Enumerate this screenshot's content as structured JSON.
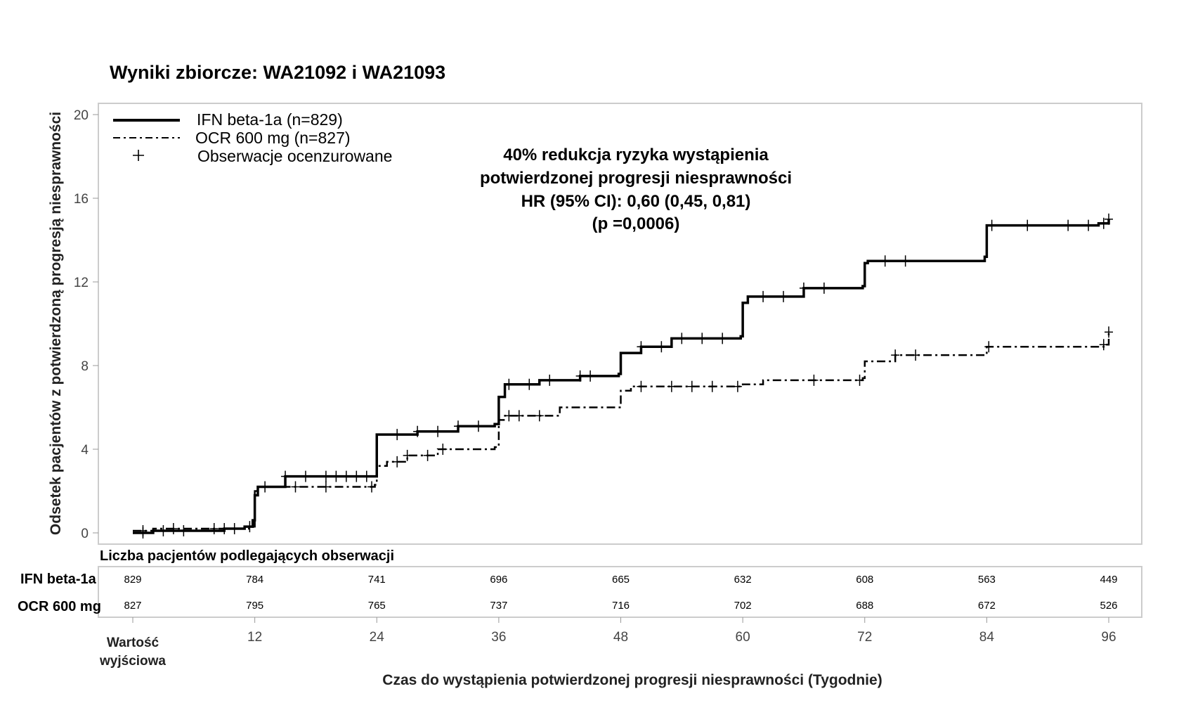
{
  "chart_data": {
    "type": "line",
    "title": "Wyniki zbiorcze: WA21092 i WA21093",
    "xlabel": "Czas do wystąpienia potwierdzonej progresji niesprawności (Tygodnie)",
    "ylabel": "Odsetek pacjentów z potwierdzoną progresją niesprawności",
    "xlim": [
      0,
      96
    ],
    "ylim": [
      0,
      20
    ],
    "x_ticks": [
      0,
      12,
      24,
      36,
      48,
      60,
      72,
      84,
      96
    ],
    "x_tick_labels": [
      "Wartość wyjściowa",
      "12",
      "24",
      "36",
      "48",
      "60",
      "72",
      "84",
      "96"
    ],
    "y_ticks": [
      0,
      4,
      8,
      12,
      16,
      20
    ],
    "y_tick_labels": [
      "0",
      "4",
      "8",
      "12",
      "16",
      "20"
    ],
    "legend_position": "top-left",
    "legend": [
      "IFN beta-1a (n=829)",
      "OCR 600 mg (n=827)",
      "Obserwacje ocenzurowane"
    ],
    "annotation": [
      "40% redukcja ryzyka  wystąpienia",
      "potwierdzonej  progresji niesprawności",
      "HR (95% CI): 0,60 (0,45, 0,81)",
      "(p =0,0006)"
    ],
    "series": [
      {
        "name": "IFN beta-1a (n=829)",
        "style": "solid",
        "x": [
          0,
          2,
          9,
          11,
          11.8,
          12,
          12.3,
          15,
          23.8,
          24,
          24.3,
          28,
          32,
          35.6,
          36,
          36.6,
          40,
          44,
          47.8,
          48,
          50,
          53,
          59.8,
          60,
          60.5,
          66,
          71.8,
          72,
          72.3,
          83.8,
          84,
          95,
          96
        ],
        "y": [
          0,
          0.1,
          0.2,
          0.3,
          0.6,
          1.8,
          2.2,
          2.7,
          2.7,
          4.7,
          4.7,
          4.85,
          5.1,
          5.2,
          6.5,
          7.1,
          7.3,
          7.5,
          7.6,
          8.6,
          8.9,
          9.3,
          9.4,
          11.0,
          11.3,
          11.7,
          11.8,
          12.9,
          13.0,
          13.2,
          14.7,
          14.8,
          15.0
        ],
        "censored_x": [
          1,
          3,
          5,
          9,
          10,
          11.5,
          15,
          17,
          19,
          20,
          21,
          22,
          23,
          26,
          28,
          30,
          32,
          34,
          37,
          39,
          41,
          44,
          45,
          50,
          52,
          54,
          56,
          58,
          62,
          64,
          66,
          68,
          74,
          76,
          84.5,
          88,
          92,
          94,
          95.5,
          96
        ]
      },
      {
        "name": "OCR 600 mg (n=827)",
        "style": "dash-dot",
        "x": [
          0,
          2,
          11.8,
          12,
          12.3,
          23.8,
          24,
          25,
          27,
          30,
          35.6,
          36,
          36.5,
          42,
          47.8,
          48,
          49,
          60,
          62,
          71.8,
          72,
          75,
          83.8,
          84,
          95.5,
          96
        ],
        "y": [
          0.1,
          0.2,
          0.3,
          2.0,
          2.2,
          2.3,
          3.2,
          3.4,
          3.7,
          4.0,
          4.1,
          5.4,
          5.6,
          6.0,
          6.0,
          6.8,
          7.0,
          7.1,
          7.3,
          7.4,
          8.2,
          8.5,
          8.6,
          8.9,
          9.0,
          9.6
        ],
        "censored_x": [
          1,
          4,
          8,
          13,
          16,
          19,
          23.5,
          26,
          27,
          29,
          30.5,
          37,
          38,
          40,
          50,
          53,
          55,
          57,
          59.5,
          67,
          71.5,
          75,
          77,
          84.2,
          95.5,
          96
        ]
      }
    ],
    "risk_table": {
      "title": "Liczba pacjentów podlegających   obserwacji",
      "rows": [
        {
          "label": "IFN beta-1a",
          "values": [
            "829",
            "784",
            "741",
            "696",
            "665",
            "632",
            "608",
            "563",
            "449"
          ]
        },
        {
          "label": "OCR 600  mg",
          "values": [
            "827",
            "795",
            "765",
            "737",
            "716",
            "702",
            "688",
            "672",
            "526"
          ]
        }
      ]
    }
  }
}
